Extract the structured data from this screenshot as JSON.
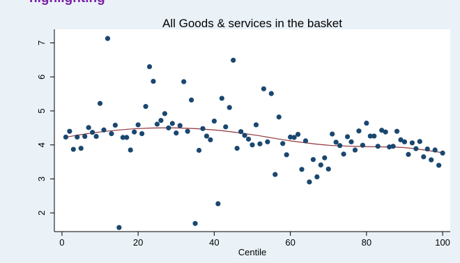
{
  "page": {
    "cut_heading": "highlighting"
  },
  "chart_data": {
    "type": "scatter",
    "title": "All Goods & services  in the basket",
    "xlabel": "Centile",
    "ylabel": "",
    "xlim": [
      -2,
      102
    ],
    "ylim": [
      1.45,
      7.4
    ],
    "xticks": [
      0,
      20,
      40,
      60,
      80,
      100
    ],
    "yticks": [
      2,
      3,
      4,
      5,
      6,
      7
    ],
    "grid": false,
    "colors": {
      "points": "#1a476f",
      "fit": "#90353b",
      "panel": "#eaf2f8",
      "plot": "#ffffff"
    },
    "series": [
      {
        "kind": "points",
        "x": [
          1,
          2,
          3,
          4,
          5,
          6,
          7,
          8,
          9,
          10,
          11,
          12,
          13,
          14,
          15,
          16,
          17,
          18,
          19,
          20,
          21,
          22,
          23,
          24,
          25,
          26,
          27,
          28,
          29,
          30,
          31,
          32,
          33,
          34,
          35,
          36,
          37,
          38,
          39,
          40,
          41,
          42,
          43,
          44,
          45,
          46,
          47,
          48,
          49,
          50,
          51,
          52,
          53,
          54,
          55,
          56,
          57,
          58,
          59,
          60,
          61,
          62,
          63,
          64,
          65,
          66,
          67,
          68,
          69,
          70,
          71,
          72,
          73,
          74,
          75,
          76,
          77,
          78,
          79,
          80,
          81,
          82,
          83,
          84,
          85,
          86,
          87,
          88,
          89,
          90,
          91,
          92,
          93,
          94,
          95,
          96,
          97,
          98,
          99,
          100
        ],
        "y": [
          4.23,
          4.4,
          3.87,
          4.23,
          3.9,
          4.25,
          4.51,
          4.37,
          4.25,
          5.22,
          4.44,
          7.13,
          4.33,
          4.58,
          1.57,
          4.22,
          4.22,
          3.85,
          4.38,
          4.59,
          4.33,
          5.13,
          6.3,
          5.87,
          4.61,
          4.72,
          4.92,
          4.5,
          4.63,
          4.35,
          4.57,
          5.86,
          4.4,
          5.32,
          1.69,
          3.84,
          4.48,
          4.26,
          4.15,
          4.7,
          2.27,
          5.37,
          4.53,
          5.1,
          6.49,
          3.9,
          4.39,
          4.28,
          4.17,
          4.0,
          4.59,
          4.03,
          5.65,
          4.09,
          5.51,
          3.13,
          4.82,
          4.04,
          3.71,
          4.23,
          4.22,
          4.31,
          3.28,
          4.12,
          2.91,
          3.57,
          3.06,
          3.41,
          3.62,
          3.29,
          4.32,
          4.08,
          3.98,
          3.73,
          4.24,
          4.09,
          3.85,
          4.41,
          3.99,
          4.64,
          4.26,
          4.26,
          3.96,
          4.43,
          4.38,
          3.94,
          3.96,
          4.4,
          4.15,
          4.09,
          3.72,
          4.06,
          3.89,
          4.1,
          3.65,
          3.88,
          3.56,
          3.85,
          3.4,
          3.76
        ]
      },
      {
        "kind": "fit",
        "x": [
          1,
          10,
          20,
          30,
          40,
          50,
          60,
          70,
          80,
          90,
          100
        ],
        "y": [
          4.23,
          4.38,
          4.48,
          4.5,
          4.44,
          4.3,
          4.12,
          3.99,
          3.95,
          3.92,
          3.77
        ]
      }
    ]
  }
}
